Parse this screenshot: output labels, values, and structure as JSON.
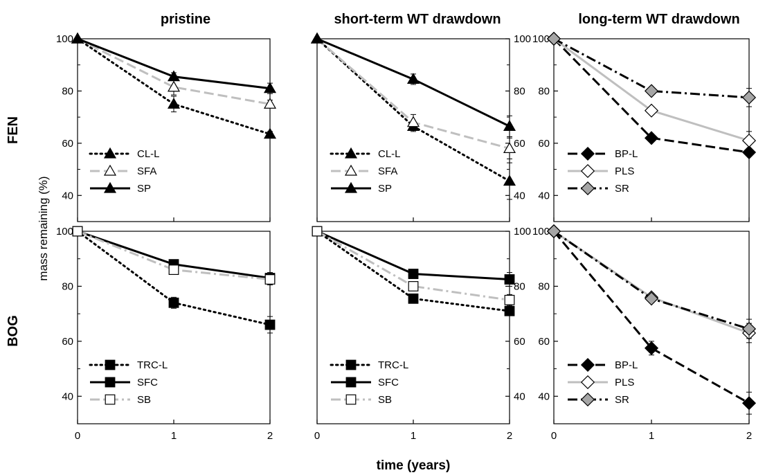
{
  "figure": {
    "ylabel": "mass remaining (%)",
    "xlabel": "time (years)",
    "column_titles": [
      "pristine",
      "short-term WT drawdown",
      "long-term WT drawdown"
    ],
    "row_labels": [
      "FEN",
      "BOG"
    ]
  },
  "styles": {
    "black_color": "#000000",
    "gray_color": "#bfbfbf",
    "mid_gray_fill": "#a6a6a6"
  },
  "chart_data": [
    {
      "type": "line",
      "panel": "FEN-pristine",
      "x": [
        0,
        1,
        2
      ],
      "xlim": [
        0,
        2
      ],
      "ylim": [
        30,
        100
      ],
      "yticks": [
        40,
        60,
        80,
        100
      ],
      "xticks": [],
      "yaxis_side": "left",
      "series": [
        {
          "name": "CL-L",
          "values": [
            100,
            75,
            63.5
          ],
          "errors": [
            0,
            3,
            1
          ],
          "line": "dotted",
          "color": "#000000",
          "marker": "triangle",
          "fill": "#000000"
        },
        {
          "name": "SFA",
          "values": [
            100,
            81.5,
            75
          ],
          "errors": [
            0,
            3,
            1.5
          ],
          "line": "dashed",
          "color": "#bfbfbf",
          "marker": "triangle",
          "fill": "#ffffff"
        },
        {
          "name": "SP",
          "values": [
            100,
            85.5,
            81
          ],
          "errors": [
            0,
            1.5,
            2
          ],
          "line": "solid",
          "color": "#000000",
          "marker": "triangle",
          "fill": "#000000"
        }
      ]
    },
    {
      "type": "line",
      "panel": "FEN-short-term",
      "x": [
        0,
        1,
        2
      ],
      "xlim": [
        0,
        2
      ],
      "ylim": [
        30,
        100
      ],
      "yticks": [
        40,
        60,
        80,
        100
      ],
      "xticks": [],
      "yaxis_side": "right",
      "series": [
        {
          "name": "CL-L",
          "values": [
            100,
            66.5,
            45.5
          ],
          "errors": [
            0,
            2,
            7
          ],
          "line": "dotted",
          "color": "#000000",
          "marker": "triangle",
          "fill": "#000000"
        },
        {
          "name": "SFA",
          "values": [
            100,
            68,
            58
          ],
          "errors": [
            0,
            3,
            4
          ],
          "line": "dashed",
          "color": "#bfbfbf",
          "marker": "triangle",
          "fill": "#ffffff"
        },
        {
          "name": "SP",
          "values": [
            100,
            84.5,
            66.5
          ],
          "errors": [
            0,
            2,
            4
          ],
          "line": "solid",
          "color": "#000000",
          "marker": "triangle",
          "fill": "#000000"
        }
      ]
    },
    {
      "type": "line",
      "panel": "FEN-long-term",
      "x": [
        0,
        1,
        2
      ],
      "xlim": [
        0,
        2
      ],
      "ylim": [
        30,
        100
      ],
      "yticks": [
        40,
        60,
        80,
        100
      ],
      "xticks": [],
      "yaxis_side": "left",
      "series": [
        {
          "name": "BP-L",
          "values": [
            100,
            62,
            56.5
          ],
          "errors": [
            0,
            1,
            1
          ],
          "line": "dashed",
          "color": "#000000",
          "marker": "diamond",
          "fill": "#000000"
        },
        {
          "name": "PLS",
          "values": [
            100,
            72.5,
            61
          ],
          "errors": [
            0,
            1.5,
            3.5
          ],
          "line": "solid",
          "color": "#bfbfbf",
          "marker": "diamond",
          "fill": "#ffffff"
        },
        {
          "name": "SR",
          "values": [
            100,
            80,
            77.5
          ],
          "errors": [
            0,
            1,
            3.5
          ],
          "line": "dashdot",
          "color": "#000000",
          "marker": "diamond",
          "fill": "#a6a6a6"
        }
      ]
    },
    {
      "type": "line",
      "panel": "BOG-pristine",
      "x": [
        0,
        1,
        2
      ],
      "xlim": [
        0,
        2
      ],
      "ylim": [
        30,
        100
      ],
      "yticks": [
        40,
        60,
        80,
        100
      ],
      "xticks": [
        0,
        1,
        2
      ],
      "yaxis_side": "left",
      "series": [
        {
          "name": "TRC-L",
          "values": [
            100,
            74,
            66
          ],
          "errors": [
            0,
            2,
            3
          ],
          "line": "dotted",
          "color": "#000000",
          "marker": "square",
          "fill": "#000000"
        },
        {
          "name": "SFC",
          "values": [
            100,
            88,
            83
          ],
          "errors": [
            0,
            1,
            2
          ],
          "line": "solid",
          "color": "#000000",
          "marker": "square",
          "fill": "#000000"
        },
        {
          "name": "SB",
          "values": [
            100,
            86,
            82.5
          ],
          "errors": [
            0,
            1,
            2
          ],
          "line": "dashdot",
          "color": "#bfbfbf",
          "marker": "square",
          "fill": "#ffffff"
        }
      ]
    },
    {
      "type": "line",
      "panel": "BOG-short-term",
      "x": [
        0,
        1,
        2
      ],
      "xlim": [
        0,
        2
      ],
      "ylim": [
        30,
        100
      ],
      "yticks": [
        40,
        60,
        80,
        100
      ],
      "xticks": [
        0,
        1,
        2
      ],
      "yaxis_side": "right",
      "series": [
        {
          "name": "TRC-L",
          "values": [
            100,
            75.5,
            71
          ],
          "errors": [
            0,
            1,
            1.5
          ],
          "line": "dotted",
          "color": "#000000",
          "marker": "square",
          "fill": "#000000"
        },
        {
          "name": "SFC",
          "values": [
            100,
            84.5,
            82.5
          ],
          "errors": [
            0,
            1.5,
            2.5
          ],
          "line": "solid",
          "color": "#000000",
          "marker": "square",
          "fill": "#000000"
        },
        {
          "name": "SB",
          "values": [
            100,
            80,
            75
          ],
          "errors": [
            0,
            1,
            2
          ],
          "line": "dashdot",
          "color": "#bfbfbf",
          "marker": "square",
          "fill": "#ffffff"
        }
      ]
    },
    {
      "type": "line",
      "panel": "BOG-long-term",
      "x": [
        0,
        1,
        2
      ],
      "xlim": [
        0,
        2
      ],
      "ylim": [
        30,
        100
      ],
      "yticks": [
        40,
        60,
        80,
        100
      ],
      "xticks": [
        0,
        1,
        2
      ],
      "yaxis_side": "left",
      "series": [
        {
          "name": "BP-L",
          "values": [
            100,
            57.5,
            37.5
          ],
          "errors": [
            0,
            2.5,
            4
          ],
          "line": "dashed",
          "color": "#000000",
          "marker": "diamond",
          "fill": "#000000"
        },
        {
          "name": "PLS",
          "values": [
            100,
            76,
            63
          ],
          "errors": [
            0,
            1.5,
            3.5
          ],
          "line": "solid",
          "color": "#bfbfbf",
          "marker": "diamond",
          "fill": "#ffffff"
        },
        {
          "name": "SR",
          "values": [
            100,
            75.5,
            64.5
          ],
          "errors": [
            0,
            1,
            3.5
          ],
          "line": "dashdot",
          "color": "#000000",
          "marker": "diamond",
          "fill": "#a6a6a6"
        }
      ]
    }
  ]
}
